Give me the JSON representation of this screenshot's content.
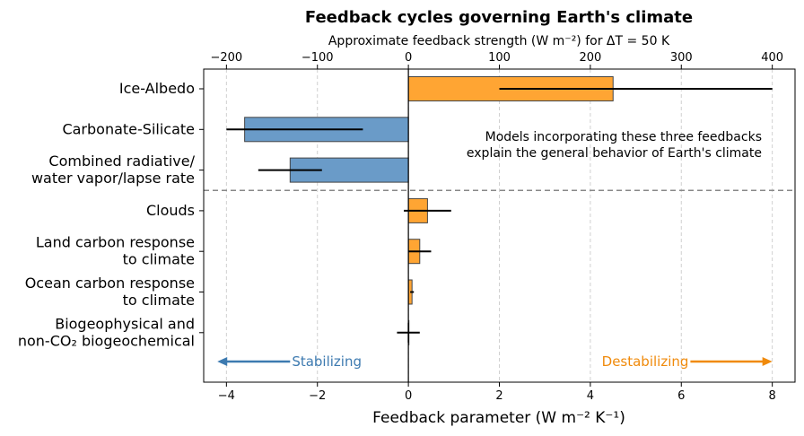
{
  "chart_data": {
    "type": "bar",
    "orientation": "horizontal",
    "title": "Feedback cycles governing Earth's climate",
    "xlabel": "Feedback parameter (W m⁻² K⁻¹)",
    "top_xlabel": "Approximate feedback strength (W m⁻²) for ΔT = 50 K",
    "xlim": [
      -4.5,
      8.5
    ],
    "top_axis_scale": 50,
    "xticks": [
      -4,
      -2,
      0,
      2,
      4,
      6,
      8
    ],
    "xtick_labels": [
      "−4",
      "−2",
      "0",
      "2",
      "4",
      "6",
      "8"
    ],
    "top_xticks": [
      -200,
      -100,
      0,
      100,
      200,
      300,
      400
    ],
    "top_xtick_labels": [
      "−200",
      "−100",
      "0",
      "100",
      "200",
      "300",
      "400"
    ],
    "grid": "vertical dashed",
    "colors": {
      "stabilizing": "#6a9bc8",
      "destabilizing": "#ffa533",
      "stabilizing_text": "#3d7ab0",
      "destabilizing_text": "#f08a0b",
      "edge": "#444444",
      "divider": "#888888"
    },
    "categories": [
      {
        "label": [
          "Ice-Albedo"
        ],
        "value": 4.5,
        "err_low": 2.0,
        "err_high": 8.0
      },
      {
        "label": [
          "Carbonate-Silicate"
        ],
        "value": -3.6,
        "err_low": -4.0,
        "err_high": -1.0
      },
      {
        "label": [
          "Combined radiative/",
          "water vapor/lapse rate"
        ],
        "value": -2.6,
        "err_low": -3.3,
        "err_high": -1.9
      },
      {
        "label": [
          "Clouds"
        ],
        "value": 0.42,
        "err_low": -0.1,
        "err_high": 0.94
      },
      {
        "label": [
          "Land carbon response",
          "to climate"
        ],
        "value": 0.25,
        "err_low": 0.0,
        "err_high": 0.5
      },
      {
        "label": [
          "Ocean carbon response",
          "to climate"
        ],
        "value": 0.08,
        "err_low": 0.04,
        "err_high": 0.12
      },
      {
        "label": [
          "Biogeophysical and",
          "non-CO₂ biogeochemical"
        ],
        "value": 0.0,
        "err_low": -0.25,
        "err_high": 0.25
      }
    ],
    "divider_after_index": 2,
    "annotation": [
      "Models incorporating these three feedbacks",
      "explain the general behavior of Earth's climate"
    ],
    "arrows": {
      "stabilizing": {
        "label": "Stabilizing",
        "from": -2.6,
        "to": -4.2
      },
      "destabilizing": {
        "label": "Destabilizing",
        "from": 6.2,
        "to": 8.0
      }
    }
  }
}
